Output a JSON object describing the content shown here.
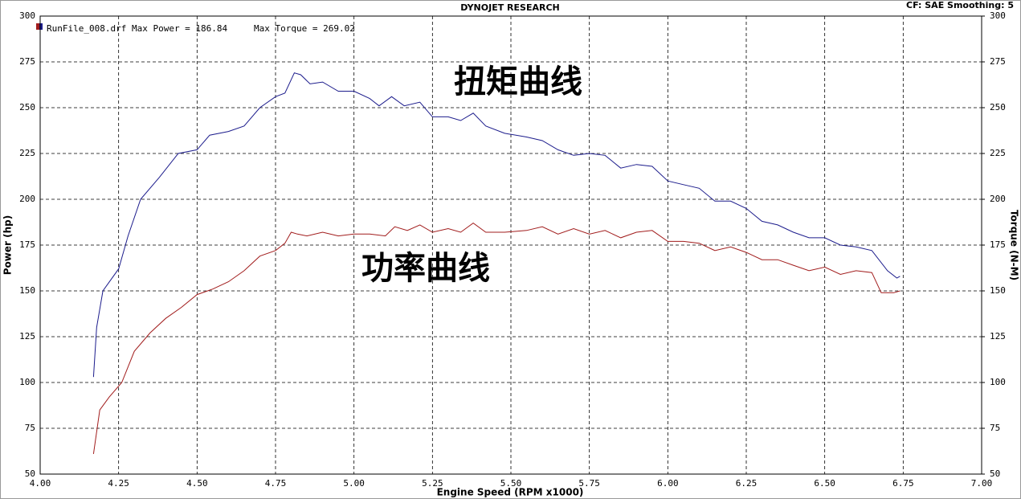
{
  "chart_data": {
    "type": "line",
    "title": "DYNOJET RESEARCH",
    "subtitle": "CF: SAE  Smoothing: 5",
    "legend_text": "RunFile_008.drf Max Power = 186.84",
    "legend_text_2": "Max Torque = 269.02",
    "xlabel": "Engine Speed (RPM x1000)",
    "ylabel": "Power (hp)",
    "y2label": "Torque (N-M)",
    "annotations": [
      {
        "text": "扭矩曲线",
        "color": "#1a237e"
      },
      {
        "text": "功率曲线",
        "color": "#9b1c1c"
      }
    ],
    "grid": true,
    "xlim": [
      4.0,
      7.0
    ],
    "xticks": [
      {
        "value": 4.0,
        "label": "4.00"
      },
      {
        "value": 4.25,
        "label": "4.25"
      },
      {
        "value": 4.5,
        "label": "4.50"
      },
      {
        "value": 4.75,
        "label": "4.75"
      },
      {
        "value": 5.0,
        "label": "5.00"
      },
      {
        "value": 5.25,
        "label": "5.25"
      },
      {
        "value": 5.5,
        "label": "5.50"
      },
      {
        "value": 5.75,
        "label": "5.75"
      },
      {
        "value": 6.0,
        "label": "6.00"
      },
      {
        "value": 6.25,
        "label": "6.25"
      },
      {
        "value": 6.5,
        "label": "6.50"
      },
      {
        "value": 6.75,
        "label": "6.75"
      },
      {
        "value": 7.0,
        "label": "7.00"
      }
    ],
    "ylim": [
      50,
      300
    ],
    "yticks": [
      50,
      75,
      100,
      125,
      150,
      175,
      200,
      225,
      250,
      275,
      300
    ],
    "y2lim": [
      50,
      300
    ],
    "y2ticks": [
      50,
      75,
      100,
      125,
      150,
      175,
      200,
      225,
      250,
      275,
      300
    ],
    "series": [
      {
        "name": "Torque",
        "color": "#1c1c8c",
        "axis": "y2",
        "x": [
          4.17,
          4.18,
          4.2,
          4.25,
          4.28,
          4.32,
          4.38,
          4.44,
          4.5,
          4.54,
          4.6,
          4.65,
          4.7,
          4.75,
          4.78,
          4.81,
          4.83,
          4.86,
          4.9,
          4.95,
          5.0,
          5.05,
          5.08,
          5.12,
          5.16,
          5.21,
          5.25,
          5.3,
          5.34,
          5.38,
          5.42,
          5.48,
          5.55,
          5.6,
          5.65,
          5.7,
          5.75,
          5.8,
          5.85,
          5.9,
          5.95,
          6.0,
          6.05,
          6.1,
          6.15,
          6.2,
          6.25,
          6.3,
          6.35,
          6.4,
          6.45,
          6.5,
          6.55,
          6.6,
          6.65,
          6.7,
          6.73,
          6.74
        ],
        "values": [
          103,
          130,
          150,
          162,
          180,
          200,
          212,
          225,
          227,
          235,
          237,
          240,
          250,
          256,
          258,
          269,
          268,
          263,
          264,
          259,
          259,
          255,
          251,
          256,
          251,
          253,
          245,
          245,
          243,
          247,
          240,
          236,
          234,
          232,
          227,
          224,
          225,
          224,
          217,
          219,
          218,
          210,
          208,
          206,
          199,
          199,
          195,
          188,
          186,
          182,
          179,
          179,
          175,
          174,
          172,
          161,
          157,
          158
        ]
      },
      {
        "name": "Power",
        "color": "#a11c1c",
        "x": [
          4.17,
          4.19,
          4.22,
          4.26,
          4.3,
          4.35,
          4.4,
          4.45,
          4.5,
          4.55,
          4.6,
          4.65,
          4.7,
          4.75,
          4.78,
          4.8,
          4.82,
          4.85,
          4.9,
          4.95,
          5.0,
          5.05,
          5.1,
          5.13,
          5.17,
          5.21,
          5.25,
          5.3,
          5.34,
          5.38,
          5.42,
          5.48,
          5.55,
          5.6,
          5.65,
          5.7,
          5.75,
          5.8,
          5.85,
          5.9,
          5.95,
          6.0,
          6.05,
          6.1,
          6.15,
          6.2,
          6.25,
          6.3,
          6.35,
          6.4,
          6.45,
          6.5,
          6.55,
          6.6,
          6.65,
          6.68,
          6.72,
          6.74
        ],
        "values": [
          61,
          85,
          92,
          100,
          117,
          127,
          135,
          141,
          148,
          151,
          155,
          161,
          169,
          172,
          176,
          182,
          181,
          180,
          182,
          180,
          181,
          181,
          180,
          185,
          183,
          186,
          182,
          184,
          182,
          187,
          182,
          182,
          183,
          185,
          181,
          184,
          181,
          183,
          179,
          182,
          183,
          177,
          177,
          176,
          172,
          174,
          171,
          167,
          167,
          164,
          161,
          163,
          159,
          161,
          160,
          149,
          149,
          150
        ]
      }
    ]
  }
}
